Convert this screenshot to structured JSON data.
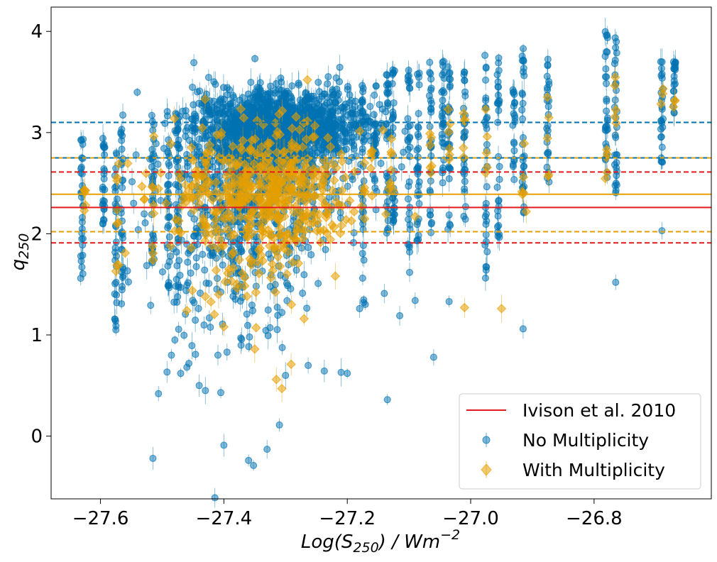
{
  "chart_data": {
    "type": "scatter",
    "title": "",
    "xlabel": "Log(S250) / Wm^-2",
    "xlabel_parts": {
      "base": "Log(S",
      "sub": "250",
      "mid": ") / Wm",
      "sup": "−2"
    },
    "ylabel": "q250",
    "ylabel_parts": {
      "base": "q",
      "sub": "250"
    },
    "xlim": [
      -27.68,
      -26.61
    ],
    "ylim": [
      -0.62,
      4.24
    ],
    "x_ticks": [
      -27.6,
      -27.4,
      -27.2,
      -27.0,
      -26.8
    ],
    "x_tick_labels": [
      "−27.6",
      "−27.4",
      "−27.2",
      "−27.0",
      "−26.8"
    ],
    "y_ticks": [
      0,
      1,
      2,
      3,
      4
    ],
    "y_tick_labels": [
      "0",
      "1",
      "2",
      "3",
      "4"
    ],
    "grid": false,
    "legend_position": "lower-right",
    "legend": [
      {
        "label": "Ivison et al. 2010",
        "kind": "line",
        "color": "#e41a1c"
      },
      {
        "label": "No Multiplicity",
        "kind": "point",
        "color": "#0072b2"
      },
      {
        "label": "With Multiplicity",
        "kind": "diamond",
        "color": "#e69f00"
      }
    ],
    "reference_lines": [
      {
        "name": "ivison-median",
        "y": 2.26,
        "style": "solid",
        "color": "#e41a1c"
      },
      {
        "name": "ivison-upper",
        "y": 2.61,
        "style": "dashed",
        "color": "#e41a1c"
      },
      {
        "name": "ivison-lower",
        "y": 1.91,
        "style": "dashed",
        "color": "#e41a1c"
      },
      {
        "name": "no-mult-upper",
        "y": 3.1,
        "style": "dashed",
        "color": "#0072b2"
      },
      {
        "name": "with-mult-median",
        "y": 2.39,
        "style": "solid",
        "color": "#e69f00"
      },
      {
        "name": "with-mult-upper",
        "y": 2.75,
        "style": "dashed",
        "color": "#e69f00"
      },
      {
        "name": "with-mult-lower",
        "y": 2.02,
        "style": "dashed",
        "color": "#e69f00"
      },
      {
        "name": "no-mult-upper-overlap",
        "y": 2.75,
        "style": "dashed",
        "color": "#0072b2"
      }
    ],
    "series": [
      {
        "name": "No Multiplicity",
        "color": "#0072b2",
        "clusters": [
          {
            "cx": -27.31,
            "cy": 3.05,
            "sx": 0.07,
            "sy": 0.18,
            "n": 1400
          },
          {
            "cx": -27.35,
            "cy": 2.45,
            "sx": 0.07,
            "sy": 0.38,
            "n": 520
          },
          {
            "cx": -27.38,
            "cy": 1.55,
            "sx": 0.06,
            "sy": 0.45,
            "n": 150
          }
        ],
        "columns": [
          {
            "x": -27.63,
            "ymin": 1.6,
            "ymax": 2.95,
            "n": 30
          },
          {
            "x": -27.595,
            "ymin": 1.9,
            "ymax": 3.0,
            "n": 25
          },
          {
            "x": -27.575,
            "ymin": 1.05,
            "ymax": 3.05,
            "n": 30
          },
          {
            "x": -27.565,
            "ymin": 1.3,
            "ymax": 3.2,
            "n": 30
          },
          {
            "x": -27.515,
            "ymin": 1.7,
            "ymax": 3.2,
            "n": 35
          },
          {
            "x": -27.49,
            "ymin": 1.3,
            "ymax": 3.25,
            "n": 30
          },
          {
            "x": -27.475,
            "ymin": 1.1,
            "ymax": 3.15,
            "n": 35
          },
          {
            "x": -27.175,
            "ymin": 1.3,
            "ymax": 3.5,
            "n": 30
          },
          {
            "x": -27.155,
            "ymin": 2.4,
            "ymax": 3.55,
            "n": 20
          },
          {
            "x": -27.135,
            "ymin": 2.0,
            "ymax": 3.6,
            "n": 30
          },
          {
            "x": -27.125,
            "ymin": 2.1,
            "ymax": 3.65,
            "n": 30
          },
          {
            "x": -27.1,
            "ymin": 1.5,
            "ymax": 3.7,
            "n": 30
          },
          {
            "x": -27.085,
            "ymin": 1.9,
            "ymax": 3.6,
            "n": 30
          },
          {
            "x": -27.065,
            "ymin": 2.0,
            "ymax": 3.7,
            "n": 30
          },
          {
            "x": -27.045,
            "ymin": 2.5,
            "ymax": 3.75,
            "n": 30
          },
          {
            "x": -27.035,
            "ymin": 2.0,
            "ymax": 3.65,
            "n": 30
          },
          {
            "x": -27.01,
            "ymin": 2.1,
            "ymax": 3.6,
            "n": 30
          },
          {
            "x": -26.975,
            "ymin": 1.55,
            "ymax": 3.8,
            "n": 30
          },
          {
            "x": -26.955,
            "ymin": 1.95,
            "ymax": 3.75,
            "n": 30
          },
          {
            "x": -26.93,
            "ymin": 2.5,
            "ymax": 3.5,
            "n": 20
          },
          {
            "x": -26.915,
            "ymin": 2.2,
            "ymax": 3.85,
            "n": 30
          },
          {
            "x": -26.875,
            "ymin": 2.45,
            "ymax": 3.75,
            "n": 25
          },
          {
            "x": -26.78,
            "ymin": 2.55,
            "ymax": 4.0,
            "n": 30
          },
          {
            "x": -26.765,
            "ymin": 2.4,
            "ymax": 3.95,
            "n": 30
          },
          {
            "x": -26.69,
            "ymin": 2.7,
            "ymax": 3.85,
            "n": 25
          },
          {
            "x": -26.67,
            "ymin": 3.1,
            "ymax": 3.75,
            "n": 20
          }
        ],
        "points": [
          [
            -27.632,
            1.56
          ],
          [
            -27.575,
            1.05
          ],
          [
            -27.515,
            -0.22
          ],
          [
            -27.506,
            0.42
          ],
          [
            -27.485,
            0.8
          ],
          [
            -27.47,
            0.62
          ],
          [
            -27.46,
            0.68
          ],
          [
            -27.44,
            0.5
          ],
          [
            -27.43,
            0.45
          ],
          [
            -27.405,
            0.43
          ],
          [
            -27.4,
            -0.09
          ],
          [
            -27.36,
            -0.24
          ],
          [
            -27.352,
            -0.29
          ],
          [
            -27.33,
            -0.13
          ],
          [
            -27.31,
            0.11
          ],
          [
            -27.3,
            0.6
          ],
          [
            -27.2,
            0.62
          ],
          [
            -27.21,
            0.63
          ],
          [
            -27.135,
            0.36
          ],
          [
            -27.115,
            1.19
          ],
          [
            -27.09,
            1.34
          ],
          [
            -27.06,
            0.78
          ],
          [
            -27.035,
            1.33
          ],
          [
            -26.915,
            1.06
          ],
          [
            -26.765,
            1.52
          ],
          [
            -26.69,
            2.03
          ],
          [
            -26.975,
            1.64
          ],
          [
            -26.975,
            1.99
          ],
          [
            -27.18,
            1.26
          ],
          [
            -27.14,
            1.41
          ]
        ]
      },
      {
        "name": "With Multiplicity",
        "color": "#e69f00",
        "clusters": [
          {
            "cx": -27.33,
            "cy": 2.45,
            "sx": 0.075,
            "sy": 0.28,
            "n": 480
          },
          {
            "cx": -27.36,
            "cy": 1.7,
            "sx": 0.05,
            "sy": 0.28,
            "n": 60
          }
        ],
        "columns": [
          {
            "x": -27.625,
            "ymin": 2.2,
            "ymax": 2.45,
            "n": 6
          },
          {
            "x": -27.572,
            "ymin": 1.6,
            "ymax": 2.7,
            "n": 8
          },
          {
            "x": -27.515,
            "ymin": 1.75,
            "ymax": 2.65,
            "n": 6
          },
          {
            "x": -27.16,
            "ymin": 2.3,
            "ymax": 2.95,
            "n": 6
          },
          {
            "x": -27.13,
            "ymin": 2.4,
            "ymax": 3.1,
            "n": 6
          },
          {
            "x": -27.065,
            "ymin": 2.55,
            "ymax": 3.15,
            "n": 6
          },
          {
            "x": -27.035,
            "ymin": 2.6,
            "ymax": 3.25,
            "n": 6
          },
          {
            "x": -27.01,
            "ymin": 2.7,
            "ymax": 3.2,
            "n": 5
          },
          {
            "x": -26.975,
            "ymin": 2.5,
            "ymax": 3.3,
            "n": 5
          },
          {
            "x": -26.915,
            "ymin": 2.2,
            "ymax": 2.95,
            "n": 5
          },
          {
            "x": -26.875,
            "ymin": 2.45,
            "ymax": 3.4,
            "n": 5
          },
          {
            "x": -26.78,
            "ymin": 2.5,
            "ymax": 3.0,
            "n": 5
          },
          {
            "x": -26.765,
            "ymin": 2.6,
            "ymax": 3.6,
            "n": 5
          },
          {
            "x": -26.69,
            "ymin": 3.2,
            "ymax": 3.45,
            "n": 3
          },
          {
            "x": -26.67,
            "ymin": 3.2,
            "ymax": 3.35,
            "n": 3
          }
        ],
        "points": [
          [
            -27.01,
            1.27
          ],
          [
            -26.95,
            1.26
          ],
          [
            -27.315,
            0.56
          ],
          [
            -27.306,
            0.47
          ],
          [
            -27.27,
            1.16
          ],
          [
            -27.291,
            0.71
          ],
          [
            -27.35,
            0.86
          ],
          [
            -27.4,
            1.08
          ],
          [
            -27.43,
            1.38
          ],
          [
            -27.46,
            1.24
          ],
          [
            -27.575,
            1.63
          ],
          [
            -27.56,
            1.81
          ],
          [
            -27.515,
            1.74
          ],
          [
            -27.09,
            2.17
          ],
          [
            -26.91,
            2.22
          ]
        ]
      }
    ]
  }
}
